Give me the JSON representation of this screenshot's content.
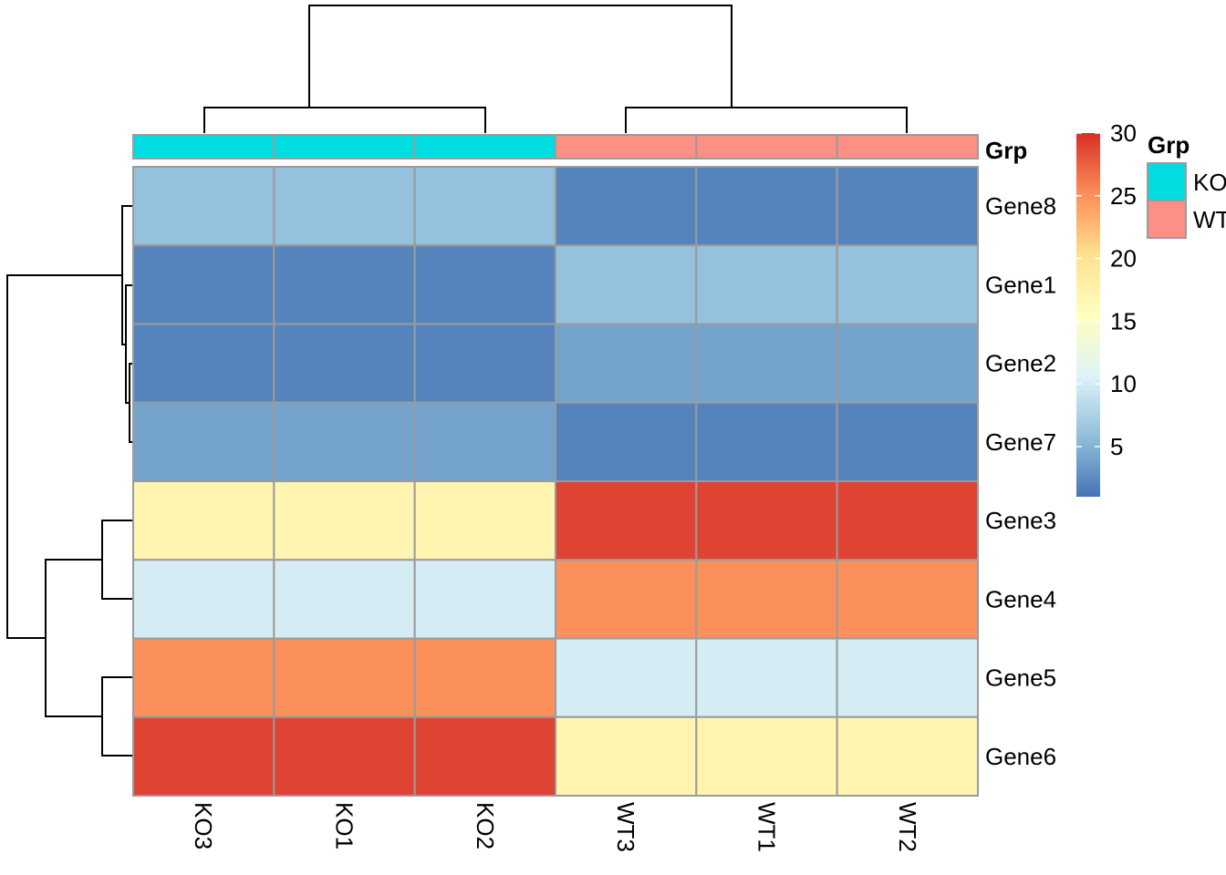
{
  "chart_data": {
    "type": "heatmap",
    "columns": [
      "KO3",
      "KO1",
      "KO2",
      "WT3",
      "WT1",
      "WT2"
    ],
    "rows": [
      "Gene8",
      "Gene1",
      "Gene2",
      "Gene7",
      "Gene3",
      "Gene4",
      "Gene5",
      "Gene6"
    ],
    "values": [
      [
        6,
        6,
        6,
        2,
        2,
        2
      ],
      [
        2,
        2,
        2,
        6,
        6,
        6
      ],
      [
        2,
        2,
        2,
        4,
        4,
        4
      ],
      [
        4,
        4,
        4,
        2,
        2,
        2
      ],
      [
        17,
        17,
        17,
        29,
        29,
        29
      ],
      [
        10,
        10,
        10,
        25,
        25,
        25
      ],
      [
        25,
        25,
        25,
        10,
        10,
        10
      ],
      [
        29,
        29,
        29,
        17,
        17,
        17
      ]
    ],
    "annotation": {
      "title": "Grp",
      "groups": [
        "KO",
        "KO",
        "KO",
        "WT",
        "WT",
        "WT"
      ]
    },
    "color_scale": {
      "min": 1,
      "max": 30,
      "ticks": [
        5,
        10,
        15,
        20,
        25,
        30
      ],
      "colors": [
        "#4575b4",
        "#91bfdb",
        "#e0f3f8",
        "#ffffbf",
        "#fee090",
        "#fc8d59",
        "#d73027"
      ]
    },
    "legend": {
      "title": "Grp",
      "items": [
        {
          "label": "KO",
          "color": "#00dde0"
        },
        {
          "label": "WT",
          "color": "#fe8f85"
        }
      ]
    },
    "clustering": {
      "rows": true,
      "columns": true
    }
  }
}
